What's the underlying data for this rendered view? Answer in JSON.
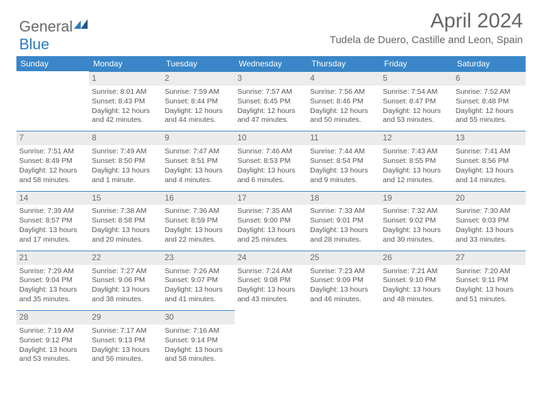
{
  "brand": {
    "word1": "General",
    "word2": "Blue"
  },
  "title": {
    "main": "April 2024",
    "sub": "Tudela de Duero, Castille and Leon, Spain"
  },
  "weekdays": [
    "Sunday",
    "Monday",
    "Tuesday",
    "Wednesday",
    "Thursday",
    "Friday",
    "Saturday"
  ],
  "colors": {
    "header_bg": "#3a86c8",
    "header_text": "#ffffff",
    "daynum_bg": "#ececec",
    "daynum_border": "#3a86c8",
    "body_text": "#555555",
    "title_text": "#666666"
  },
  "calendar": {
    "first_weekday_index": 1,
    "days": [
      {
        "n": 1,
        "sunrise": "8:01 AM",
        "sunset": "8:43 PM",
        "daylight": "12 hours and 42 minutes."
      },
      {
        "n": 2,
        "sunrise": "7:59 AM",
        "sunset": "8:44 PM",
        "daylight": "12 hours and 44 minutes."
      },
      {
        "n": 3,
        "sunrise": "7:57 AM",
        "sunset": "8:45 PM",
        "daylight": "12 hours and 47 minutes."
      },
      {
        "n": 4,
        "sunrise": "7:56 AM",
        "sunset": "8:46 PM",
        "daylight": "12 hours and 50 minutes."
      },
      {
        "n": 5,
        "sunrise": "7:54 AM",
        "sunset": "8:47 PM",
        "daylight": "12 hours and 53 minutes."
      },
      {
        "n": 6,
        "sunrise": "7:52 AM",
        "sunset": "8:48 PM",
        "daylight": "12 hours and 55 minutes."
      },
      {
        "n": 7,
        "sunrise": "7:51 AM",
        "sunset": "8:49 PM",
        "daylight": "12 hours and 58 minutes."
      },
      {
        "n": 8,
        "sunrise": "7:49 AM",
        "sunset": "8:50 PM",
        "daylight": "13 hours and 1 minute."
      },
      {
        "n": 9,
        "sunrise": "7:47 AM",
        "sunset": "8:51 PM",
        "daylight": "13 hours and 4 minutes."
      },
      {
        "n": 10,
        "sunrise": "7:46 AM",
        "sunset": "8:53 PM",
        "daylight": "13 hours and 6 minutes."
      },
      {
        "n": 11,
        "sunrise": "7:44 AM",
        "sunset": "8:54 PM",
        "daylight": "13 hours and 9 minutes."
      },
      {
        "n": 12,
        "sunrise": "7:43 AM",
        "sunset": "8:55 PM",
        "daylight": "13 hours and 12 minutes."
      },
      {
        "n": 13,
        "sunrise": "7:41 AM",
        "sunset": "8:56 PM",
        "daylight": "13 hours and 14 minutes."
      },
      {
        "n": 14,
        "sunrise": "7:39 AM",
        "sunset": "8:57 PM",
        "daylight": "13 hours and 17 minutes."
      },
      {
        "n": 15,
        "sunrise": "7:38 AM",
        "sunset": "8:58 PM",
        "daylight": "13 hours and 20 minutes."
      },
      {
        "n": 16,
        "sunrise": "7:36 AM",
        "sunset": "8:59 PM",
        "daylight": "13 hours and 22 minutes."
      },
      {
        "n": 17,
        "sunrise": "7:35 AM",
        "sunset": "9:00 PM",
        "daylight": "13 hours and 25 minutes."
      },
      {
        "n": 18,
        "sunrise": "7:33 AM",
        "sunset": "9:01 PM",
        "daylight": "13 hours and 28 minutes."
      },
      {
        "n": 19,
        "sunrise": "7:32 AM",
        "sunset": "9:02 PM",
        "daylight": "13 hours and 30 minutes."
      },
      {
        "n": 20,
        "sunrise": "7:30 AM",
        "sunset": "9:03 PM",
        "daylight": "13 hours and 33 minutes."
      },
      {
        "n": 21,
        "sunrise": "7:29 AM",
        "sunset": "9:04 PM",
        "daylight": "13 hours and 35 minutes."
      },
      {
        "n": 22,
        "sunrise": "7:27 AM",
        "sunset": "9:06 PM",
        "daylight": "13 hours and 38 minutes."
      },
      {
        "n": 23,
        "sunrise": "7:26 AM",
        "sunset": "9:07 PM",
        "daylight": "13 hours and 41 minutes."
      },
      {
        "n": 24,
        "sunrise": "7:24 AM",
        "sunset": "9:08 PM",
        "daylight": "13 hours and 43 minutes."
      },
      {
        "n": 25,
        "sunrise": "7:23 AM",
        "sunset": "9:09 PM",
        "daylight": "13 hours and 46 minutes."
      },
      {
        "n": 26,
        "sunrise": "7:21 AM",
        "sunset": "9:10 PM",
        "daylight": "13 hours and 48 minutes."
      },
      {
        "n": 27,
        "sunrise": "7:20 AM",
        "sunset": "9:11 PM",
        "daylight": "13 hours and 51 minutes."
      },
      {
        "n": 28,
        "sunrise": "7:19 AM",
        "sunset": "9:12 PM",
        "daylight": "13 hours and 53 minutes."
      },
      {
        "n": 29,
        "sunrise": "7:17 AM",
        "sunset": "9:13 PM",
        "daylight": "13 hours and 56 minutes."
      },
      {
        "n": 30,
        "sunrise": "7:16 AM",
        "sunset": "9:14 PM",
        "daylight": "13 hours and 58 minutes."
      }
    ]
  },
  "labels": {
    "sunrise": "Sunrise: ",
    "sunset": "Sunset: ",
    "daylight": "Daylight: "
  }
}
